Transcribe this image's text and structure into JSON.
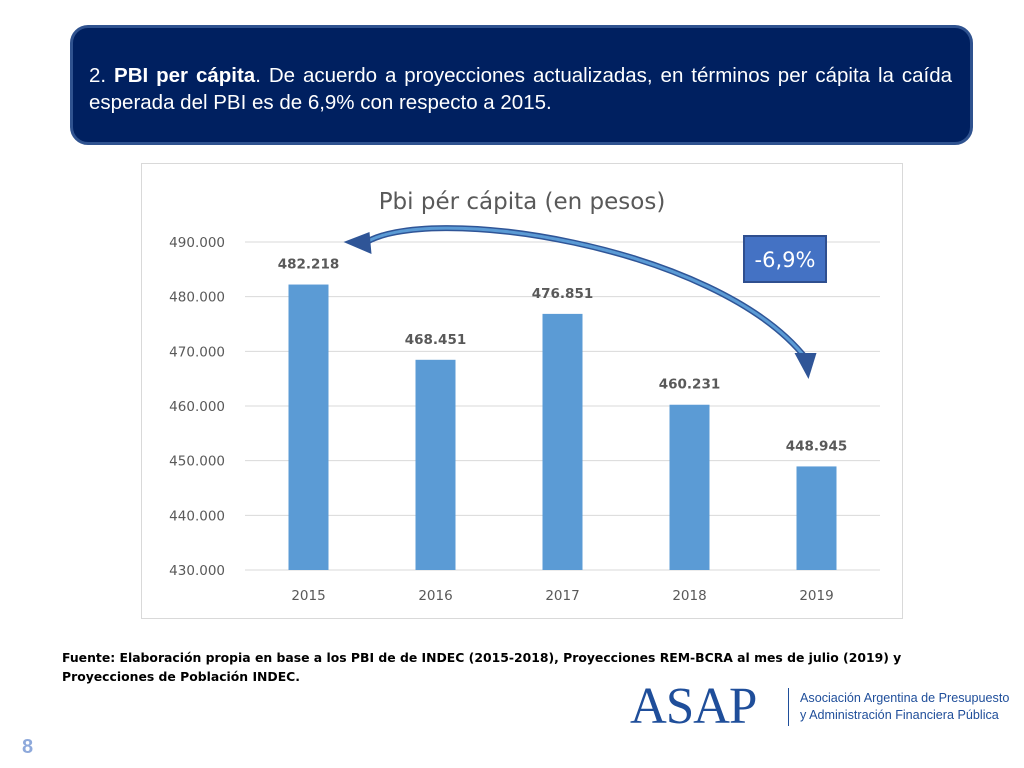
{
  "header": {
    "number": "2.",
    "heading": "PBI per cápita",
    "body": ". De acuerdo a proyecciones actualizadas, en términos per cápita la caída esperada del PBI  es de 6,9% con respecto a 2015."
  },
  "chart_data": {
    "type": "bar",
    "title": "Pbi pér cápita (en pesos)",
    "categories": [
      "2015",
      "2016",
      "2017",
      "2018",
      "2019"
    ],
    "values": [
      482218,
      468451,
      476851,
      460231,
      448945
    ],
    "value_labels": [
      "482.218",
      "468.451",
      "476.851",
      "460.231",
      "448.945"
    ],
    "yticks": [
      430000,
      440000,
      450000,
      460000,
      470000,
      480000,
      490000
    ],
    "ytick_labels": [
      "430.000",
      "440.000",
      "450.000",
      "460.000",
      "470.000",
      "480.000",
      "490.000"
    ],
    "ylim": [
      430000,
      490000
    ],
    "xlabel": "",
    "ylabel": "",
    "grid": true,
    "legend": "none",
    "bar_color": "#5b9bd5",
    "annotation": {
      "label": "-6,9%",
      "arrow_from": "2015",
      "arrow_to": "2019",
      "arrow_color": "#2f5597"
    }
  },
  "source_note": "Fuente: Elaboración propia en base a los  PBI  de de INDEC (2015-2018), Proyecciones REM-BCRA al mes de julio (2019) y Proyecciones de Población INDEC.",
  "logo": {
    "wordmark": "ASAP",
    "line1": "Asociación Argentina de Presupuesto",
    "line2": "y Administración Financiera Pública",
    "color": "#1f4e9a"
  },
  "page_number": "8"
}
